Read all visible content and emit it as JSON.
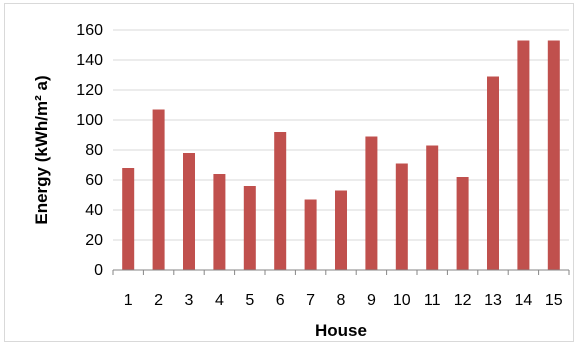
{
  "chart_data": {
    "type": "bar",
    "categories": [
      "1",
      "2",
      "3",
      "4",
      "5",
      "6",
      "7",
      "8",
      "9",
      "10",
      "11",
      "12",
      "13",
      "14",
      "15"
    ],
    "values": [
      68,
      107,
      78,
      64,
      56,
      92,
      47,
      53,
      89,
      71,
      83,
      62,
      129,
      153,
      153
    ],
    "xlabel": "House",
    "ylabel": "Energy (kWh/m² a)",
    "ylim": [
      0,
      160
    ],
    "yticks": [
      0,
      20,
      40,
      60,
      80,
      100,
      120,
      140,
      160
    ],
    "grid": "horizontal",
    "legend": "none",
    "bar_color": "#c0504d",
    "grid_color": "#d9d9d9"
  }
}
